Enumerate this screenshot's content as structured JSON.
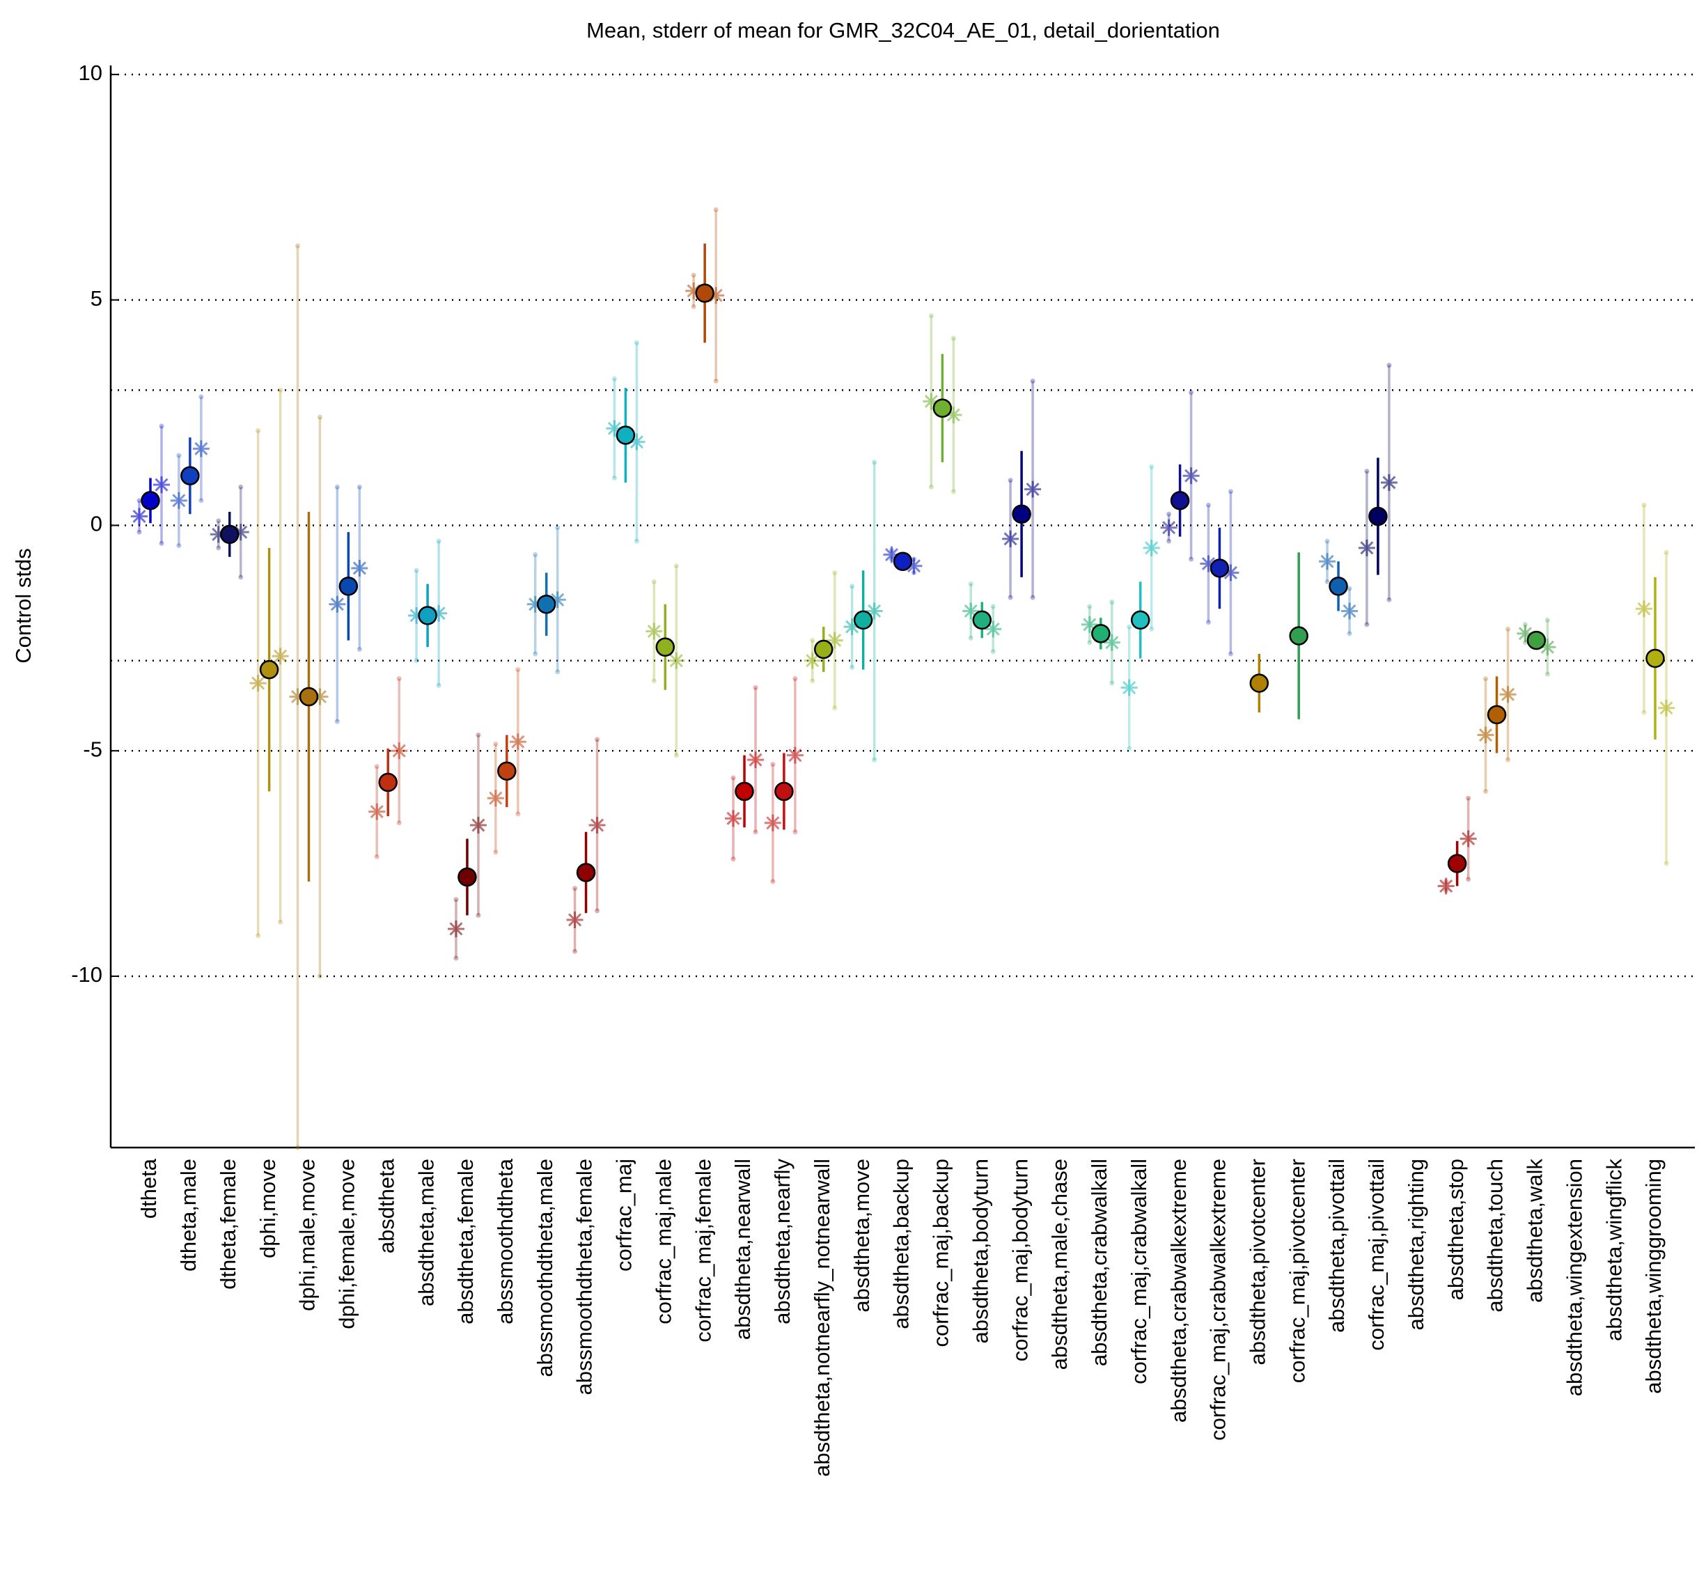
{
  "chart_data": {
    "type": "errorbar",
    "title": "Mean, stderr of mean for GMR_32C04_AE_01, detail_dorientation",
    "y_label": "Control stds",
    "categories": [
      "dtheta",
      "dtheta,male",
      "dtheta,female",
      "dphi,move",
      "dphi,male,move",
      "dphi,female,move",
      "absdtheta",
      "absdtheta,male",
      "absdtheta,female",
      "abssmoothdtheta",
      "abssmoothdtheta,male",
      "abssmoothdtheta,female",
      "corfrac_maj",
      "corfrac_maj,male",
      "corfrac_maj,female",
      "absdtheta,nearwall",
      "absdtheta,nearfly",
      "absdtheta,notnearfly_notnearwall",
      "absdtheta,move",
      "absdtheta,backup",
      "corfrac_maj,backup",
      "absdtheta,bodyturn",
      "corfrac_maj,bodyturn",
      "absdtheta,male,chase",
      "absdtheta,crabwalkall",
      "corfrac_maj,crabwalkall",
      "absdtheta,crabwalkextreme",
      "corfrac_maj,crabwalkextreme",
      "absdtheta,pivotcenter",
      "corfrac_maj,pivotcenter",
      "absdtheta,pivottail",
      "corfrac_maj,pivottail",
      "absdtheta,righting",
      "absdtheta,stop",
      "absdtheta,touch",
      "absdtheta,walk",
      "absdtheta,wingextension",
      "absdtheta,wingflick",
      "absdtheta,winggrooming"
    ],
    "colors": [
      "#0000c8",
      "#1040c0",
      "#101060",
      "#b09010",
      "#a87010",
      "#0848b0",
      "#c03010",
      "#10a0c0",
      "#700000",
      "#c04010",
      "#1070b0",
      "#900000",
      "#10b0c0",
      "#90b020",
      "#b04808",
      "#c00000",
      "#c01010",
      "#98b018",
      "#10b0a0",
      "#1020c0",
      "#70b030",
      "#20b080",
      "#000080",
      "#a0a0a0",
      "#20b070",
      "#20c0c0",
      "#101090",
      "#1020b0",
      "#b08000",
      "#30a050",
      "#1060b0",
      "#000060",
      "#a0a0a0",
      "#a00000",
      "#b06000",
      "#40a040",
      "#a0a0a0",
      "#a0a0a0",
      "#b0b010"
    ],
    "series": [
      {
        "values": [
          0.55,
          1.1,
          -0.2,
          -3.2,
          -3.8,
          -1.35,
          -5.7,
          -2.0,
          -7.8,
          -5.45,
          -1.75,
          -7.7,
          2.0,
          -2.7,
          5.15,
          -5.9,
          -5.9,
          -2.75,
          -2.1,
          -0.8,
          2.6,
          -2.1,
          0.25,
          null,
          -2.4,
          -2.1,
          0.55,
          -0.95,
          -3.5,
          -2.45,
          -1.35,
          0.2,
          null,
          -7.5,
          -4.2,
          -2.55,
          null,
          null,
          -2.95
        ],
        "errors": [
          0.5,
          0.85,
          0.5,
          2.7,
          4.1,
          1.2,
          0.75,
          0.7,
          0.85,
          0.8,
          0.7,
          0.9,
          1.05,
          0.95,
          1.1,
          0.8,
          0.85,
          0.5,
          1.1,
          0.1,
          1.2,
          0.4,
          1.4,
          null,
          0.35,
          0.85,
          0.8,
          0.9,
          0.65,
          1.85,
          0.55,
          1.3,
          null,
          0.5,
          0.85,
          0.2,
          null,
          null,
          1.8
        ]
      },
      {
        "values": [
          0.2,
          0.55,
          -0.2,
          -3.5,
          -3.8,
          -1.75,
          -6.35,
          -2.0,
          -8.95,
          -6.05,
          -1.75,
          -8.75,
          2.15,
          -2.35,
          5.2,
          -6.5,
          -6.6,
          -3.0,
          -2.25,
          -0.65,
          2.75,
          -1.9,
          -0.3,
          null,
          -2.2,
          -3.6,
          -0.05,
          -0.85,
          null,
          null,
          -0.8,
          -0.5,
          null,
          -8.0,
          -4.65,
          -2.4,
          null,
          null,
          -1.85
        ],
        "errors": [
          0.35,
          1.0,
          0.3,
          5.6,
          10,
          2.6,
          1.0,
          1.0,
          0.65,
          1.2,
          1.1,
          0.7,
          1.1,
          1.1,
          0.35,
          0.9,
          1.3,
          0.45,
          0.9,
          0.1,
          1.9,
          0.6,
          1.3,
          null,
          0.4,
          1.35,
          0.3,
          1.3,
          null,
          null,
          0.45,
          1.7,
          null,
          0.1,
          1.25,
          0.2,
          null,
          null,
          2.3
        ]
      },
      {
        "values": [
          0.9,
          1.7,
          -0.15,
          -2.9,
          -3.8,
          -0.95,
          -5.0,
          -1.95,
          -6.65,
          -4.8,
          -1.65,
          -6.65,
          1.85,
          -3.0,
          5.1,
          -5.2,
          -5.1,
          -2.55,
          -1.9,
          -0.9,
          2.45,
          -2.3,
          0.8,
          null,
          -2.6,
          -0.5,
          1.1,
          -1.05,
          null,
          null,
          -1.9,
          0.95,
          null,
          -6.95,
          -3.75,
          -2.7,
          null,
          null,
          -4.05
        ],
        "errors": [
          1.3,
          1.15,
          1.0,
          5.9,
          6.2,
          1.8,
          1.6,
          1.6,
          2.0,
          1.6,
          1.6,
          1.9,
          2.2,
          2.1,
          1.9,
          1.6,
          1.7,
          1.5,
          3.3,
          0.15,
          1.7,
          0.5,
          2.4,
          null,
          0.9,
          1.8,
          1.85,
          1.8,
          null,
          null,
          0.5,
          2.6,
          null,
          0.9,
          1.45,
          0.6,
          null,
          null,
          3.45
        ]
      }
    ],
    "ylim": [
      -13.8,
      10.2
    ],
    "yticks": [
      10,
      5,
      0,
      -5,
      -10
    ],
    "reference_lines": [
      3,
      -3
    ],
    "grid": true
  }
}
